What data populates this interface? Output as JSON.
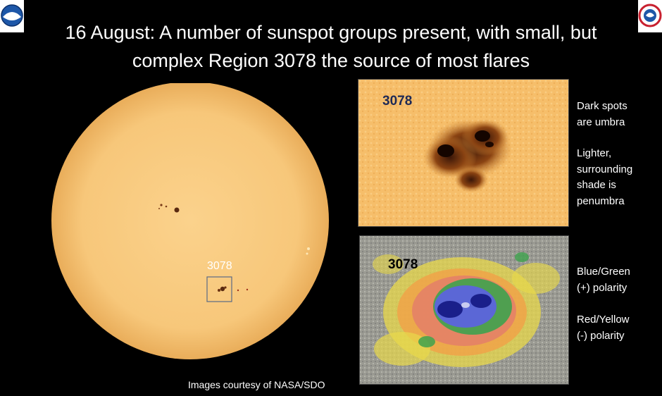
{
  "title_lines": [
    "16 August: A number of sunspot groups present, with small, but",
    "complex Region 3078 the source of most flares"
  ],
  "logos": {
    "left": "NOAA",
    "right": "NATIONAL WEATHER SERVICE"
  },
  "sun": {
    "region_label": "3078"
  },
  "credit": "Images courtesy of NASA/SDO",
  "panels": {
    "top_label": "3078",
    "bottom_label": "3078"
  },
  "notes": {
    "umbra": [
      "Dark spots",
      "are umbra"
    ],
    "penumbra": [
      "Lighter,",
      "surrounding",
      "shade is",
      "penumbra"
    ],
    "positive": [
      "Blue/Green",
      "(+) polarity"
    ],
    "negative": [
      "Red/Yellow",
      "(-) polarity"
    ]
  }
}
